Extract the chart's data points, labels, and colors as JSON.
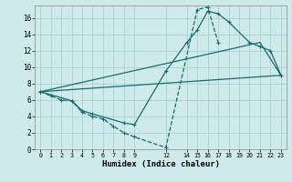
{
  "xlabel": "Humidex (Indice chaleur)",
  "background_color": "#ceeaea",
  "grid_color": "#aed0d0",
  "line_color": "#1a6b6b",
  "xlim": [
    -0.5,
    23.5
  ],
  "ylim": [
    0,
    17.5
  ],
  "xticks": [
    0,
    1,
    2,
    3,
    4,
    5,
    6,
    7,
    8,
    9,
    12,
    14,
    15,
    16,
    17,
    18,
    19,
    20,
    21,
    22,
    23
  ],
  "yticks": [
    0,
    2,
    4,
    6,
    8,
    10,
    12,
    14,
    16
  ],
  "line1_x": [
    0,
    1,
    2,
    3,
    4,
    5,
    6,
    7,
    8,
    9,
    12,
    15,
    16,
    17
  ],
  "line1_y": [
    7.0,
    6.5,
    6.0,
    5.9,
    4.5,
    4.0,
    3.7,
    2.8,
    2.0,
    1.5,
    0.2,
    17.0,
    17.3,
    13.0
  ],
  "line2_x": [
    0,
    3,
    4,
    5,
    8,
    9,
    12,
    14,
    15,
    16,
    17,
    18,
    20,
    21,
    22,
    23
  ],
  "line2_y": [
    7.0,
    5.9,
    4.7,
    4.3,
    3.2,
    3.0,
    9.5,
    13.0,
    14.5,
    16.8,
    16.5,
    15.5,
    13.0,
    12.5,
    12.0,
    9.0
  ],
  "line3_x": [
    0,
    23
  ],
  "line3_y": [
    7.0,
    9.0
  ],
  "line4_x": [
    0,
    21,
    23
  ],
  "line4_y": [
    7.0,
    13.0,
    9.0
  ]
}
